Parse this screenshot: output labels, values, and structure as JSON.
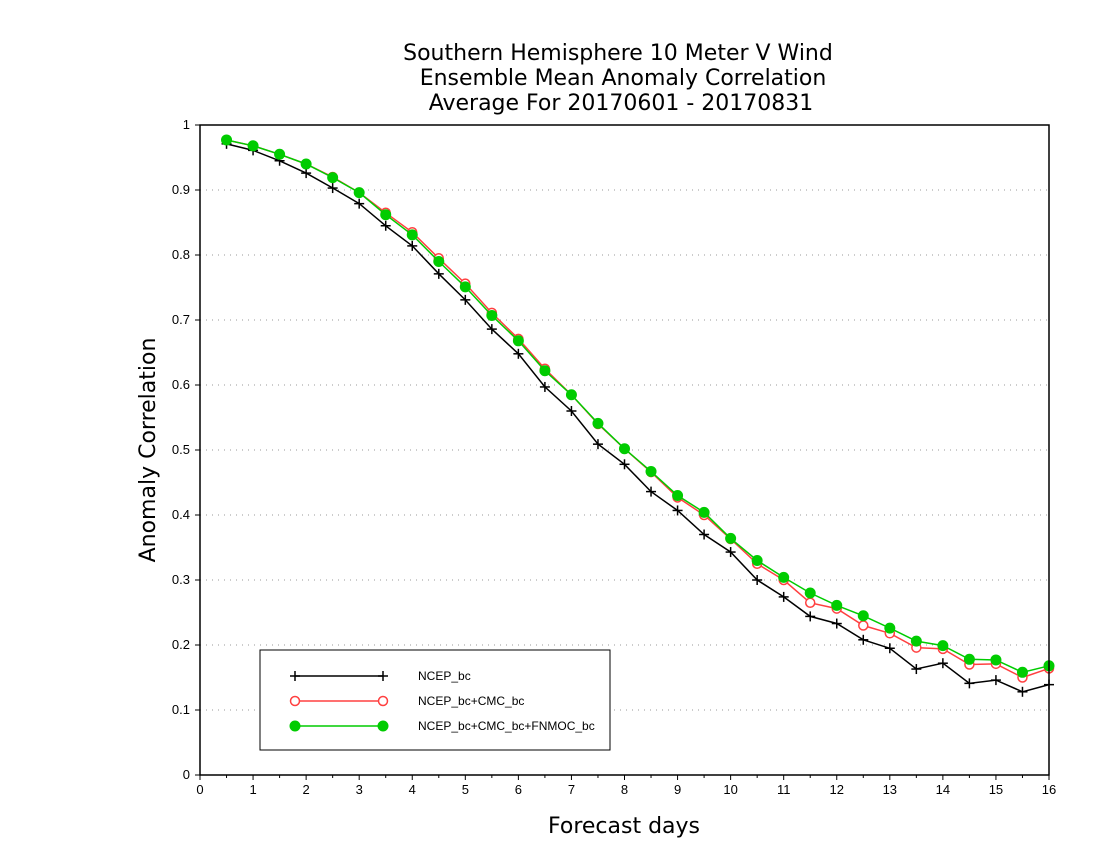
{
  "chart_data": {
    "type": "line",
    "title": [
      "Southern Hemisphere 10 Meter V Wind",
      "Ensemble Mean Anomaly Correlation",
      "Average For 20170601 - 20170831"
    ],
    "xlabel": "Forecast days",
    "ylabel": "Anomaly Correlation",
    "xlim": [
      0,
      16
    ],
    "ylim": [
      0,
      1
    ],
    "xticks": [
      "0",
      "1",
      "2",
      "3",
      "4",
      "5",
      "6",
      "7",
      "8",
      "9",
      "10",
      "11",
      "12",
      "13",
      "14",
      "15",
      "16"
    ],
    "yticks": [
      "0",
      "0.1",
      "0.2",
      "0.3",
      "0.4",
      "0.5",
      "0.6",
      "0.7",
      "0.8",
      "0.9",
      "1"
    ],
    "grid": "horizontal dotted",
    "legend_position": "bottom-left",
    "x": [
      0.5,
      1,
      1.5,
      2,
      2.5,
      3,
      3.5,
      4,
      4.5,
      5,
      5.5,
      6,
      6.5,
      7,
      7.5,
      8,
      8.5,
      9,
      9.5,
      10,
      10.5,
      11,
      11.5,
      12,
      12.5,
      13,
      13.5,
      14,
      14.5,
      15,
      15.5,
      16
    ],
    "series": [
      {
        "name": "NCEP_bc",
        "color": "#000000",
        "marker": "plus",
        "values": [
          0.971,
          0.961,
          0.945,
          0.926,
          0.903,
          0.879,
          0.845,
          0.814,
          0.771,
          0.731,
          0.686,
          0.648,
          0.597,
          0.56,
          0.509,
          0.478,
          0.436,
          0.407,
          0.37,
          0.343,
          0.3,
          0.274,
          0.244,
          0.233,
          0.208,
          0.195,
          0.163,
          0.172,
          0.141,
          0.146,
          0.128,
          0.139
        ]
      },
      {
        "name": "NCEP_bc+CMC_bc",
        "color": "#ff4040",
        "marker": "open-circle",
        "values": [
          0.977,
          0.968,
          0.955,
          0.94,
          0.92,
          0.896,
          0.865,
          0.835,
          0.795,
          0.756,
          0.711,
          0.671,
          0.625,
          0.585,
          0.54,
          0.502,
          0.466,
          0.427,
          0.4,
          0.363,
          0.325,
          0.3,
          0.265,
          0.256,
          0.23,
          0.218,
          0.196,
          0.194,
          0.17,
          0.171,
          0.15,
          0.164
        ]
      },
      {
        "name": "NCEP_bc+CMC_bc+FNMOC_bc",
        "color": "#00cc00",
        "marker": "filled-circle",
        "values": [
          0.977,
          0.968,
          0.955,
          0.94,
          0.919,
          0.896,
          0.862,
          0.831,
          0.79,
          0.751,
          0.707,
          0.668,
          0.622,
          0.585,
          0.541,
          0.502,
          0.467,
          0.43,
          0.404,
          0.364,
          0.33,
          0.304,
          0.28,
          0.261,
          0.245,
          0.226,
          0.206,
          0.199,
          0.178,
          0.177,
          0.158,
          0.168
        ]
      }
    ]
  }
}
